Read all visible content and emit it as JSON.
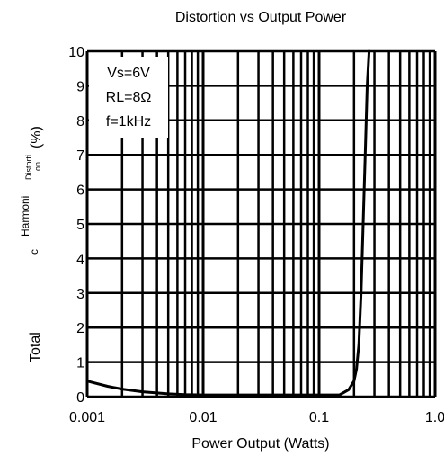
{
  "chart_data": {
    "type": "line",
    "title": "Distortion vs Output Power",
    "xlabel": "Power Output (Watts)",
    "ylabel_parts": [
      "Total",
      "Harmoni",
      "c",
      "Distorti",
      "on",
      "(%)"
    ],
    "x_scale": "log",
    "xlim": [
      0.001,
      1.0
    ],
    "ylim": [
      0,
      10
    ],
    "x_tick_labels": [
      "0.001",
      "0.01",
      "0.1",
      "1.0"
    ],
    "y_tick_labels": [
      "0",
      "1",
      "2",
      "3",
      "4",
      "5",
      "6",
      "7",
      "8",
      "9",
      "10"
    ],
    "grid": true,
    "annotations": [
      "Vs=6V",
      "RL=8Ω",
      "f=1kHz"
    ],
    "series": [
      {
        "x": [
          0.001,
          0.0015,
          0.002,
          0.003,
          0.005,
          0.007,
          0.01,
          0.02,
          0.05,
          0.1,
          0.15,
          0.18,
          0.2,
          0.21,
          0.22,
          0.23,
          0.24,
          0.25,
          0.26,
          0.27
        ],
        "y": [
          0.45,
          0.3,
          0.22,
          0.14,
          0.08,
          0.06,
          0.05,
          0.05,
          0.05,
          0.05,
          0.05,
          0.2,
          0.45,
          0.8,
          1.5,
          3.0,
          5.0,
          7.0,
          9.0,
          10.0
        ]
      }
    ]
  }
}
